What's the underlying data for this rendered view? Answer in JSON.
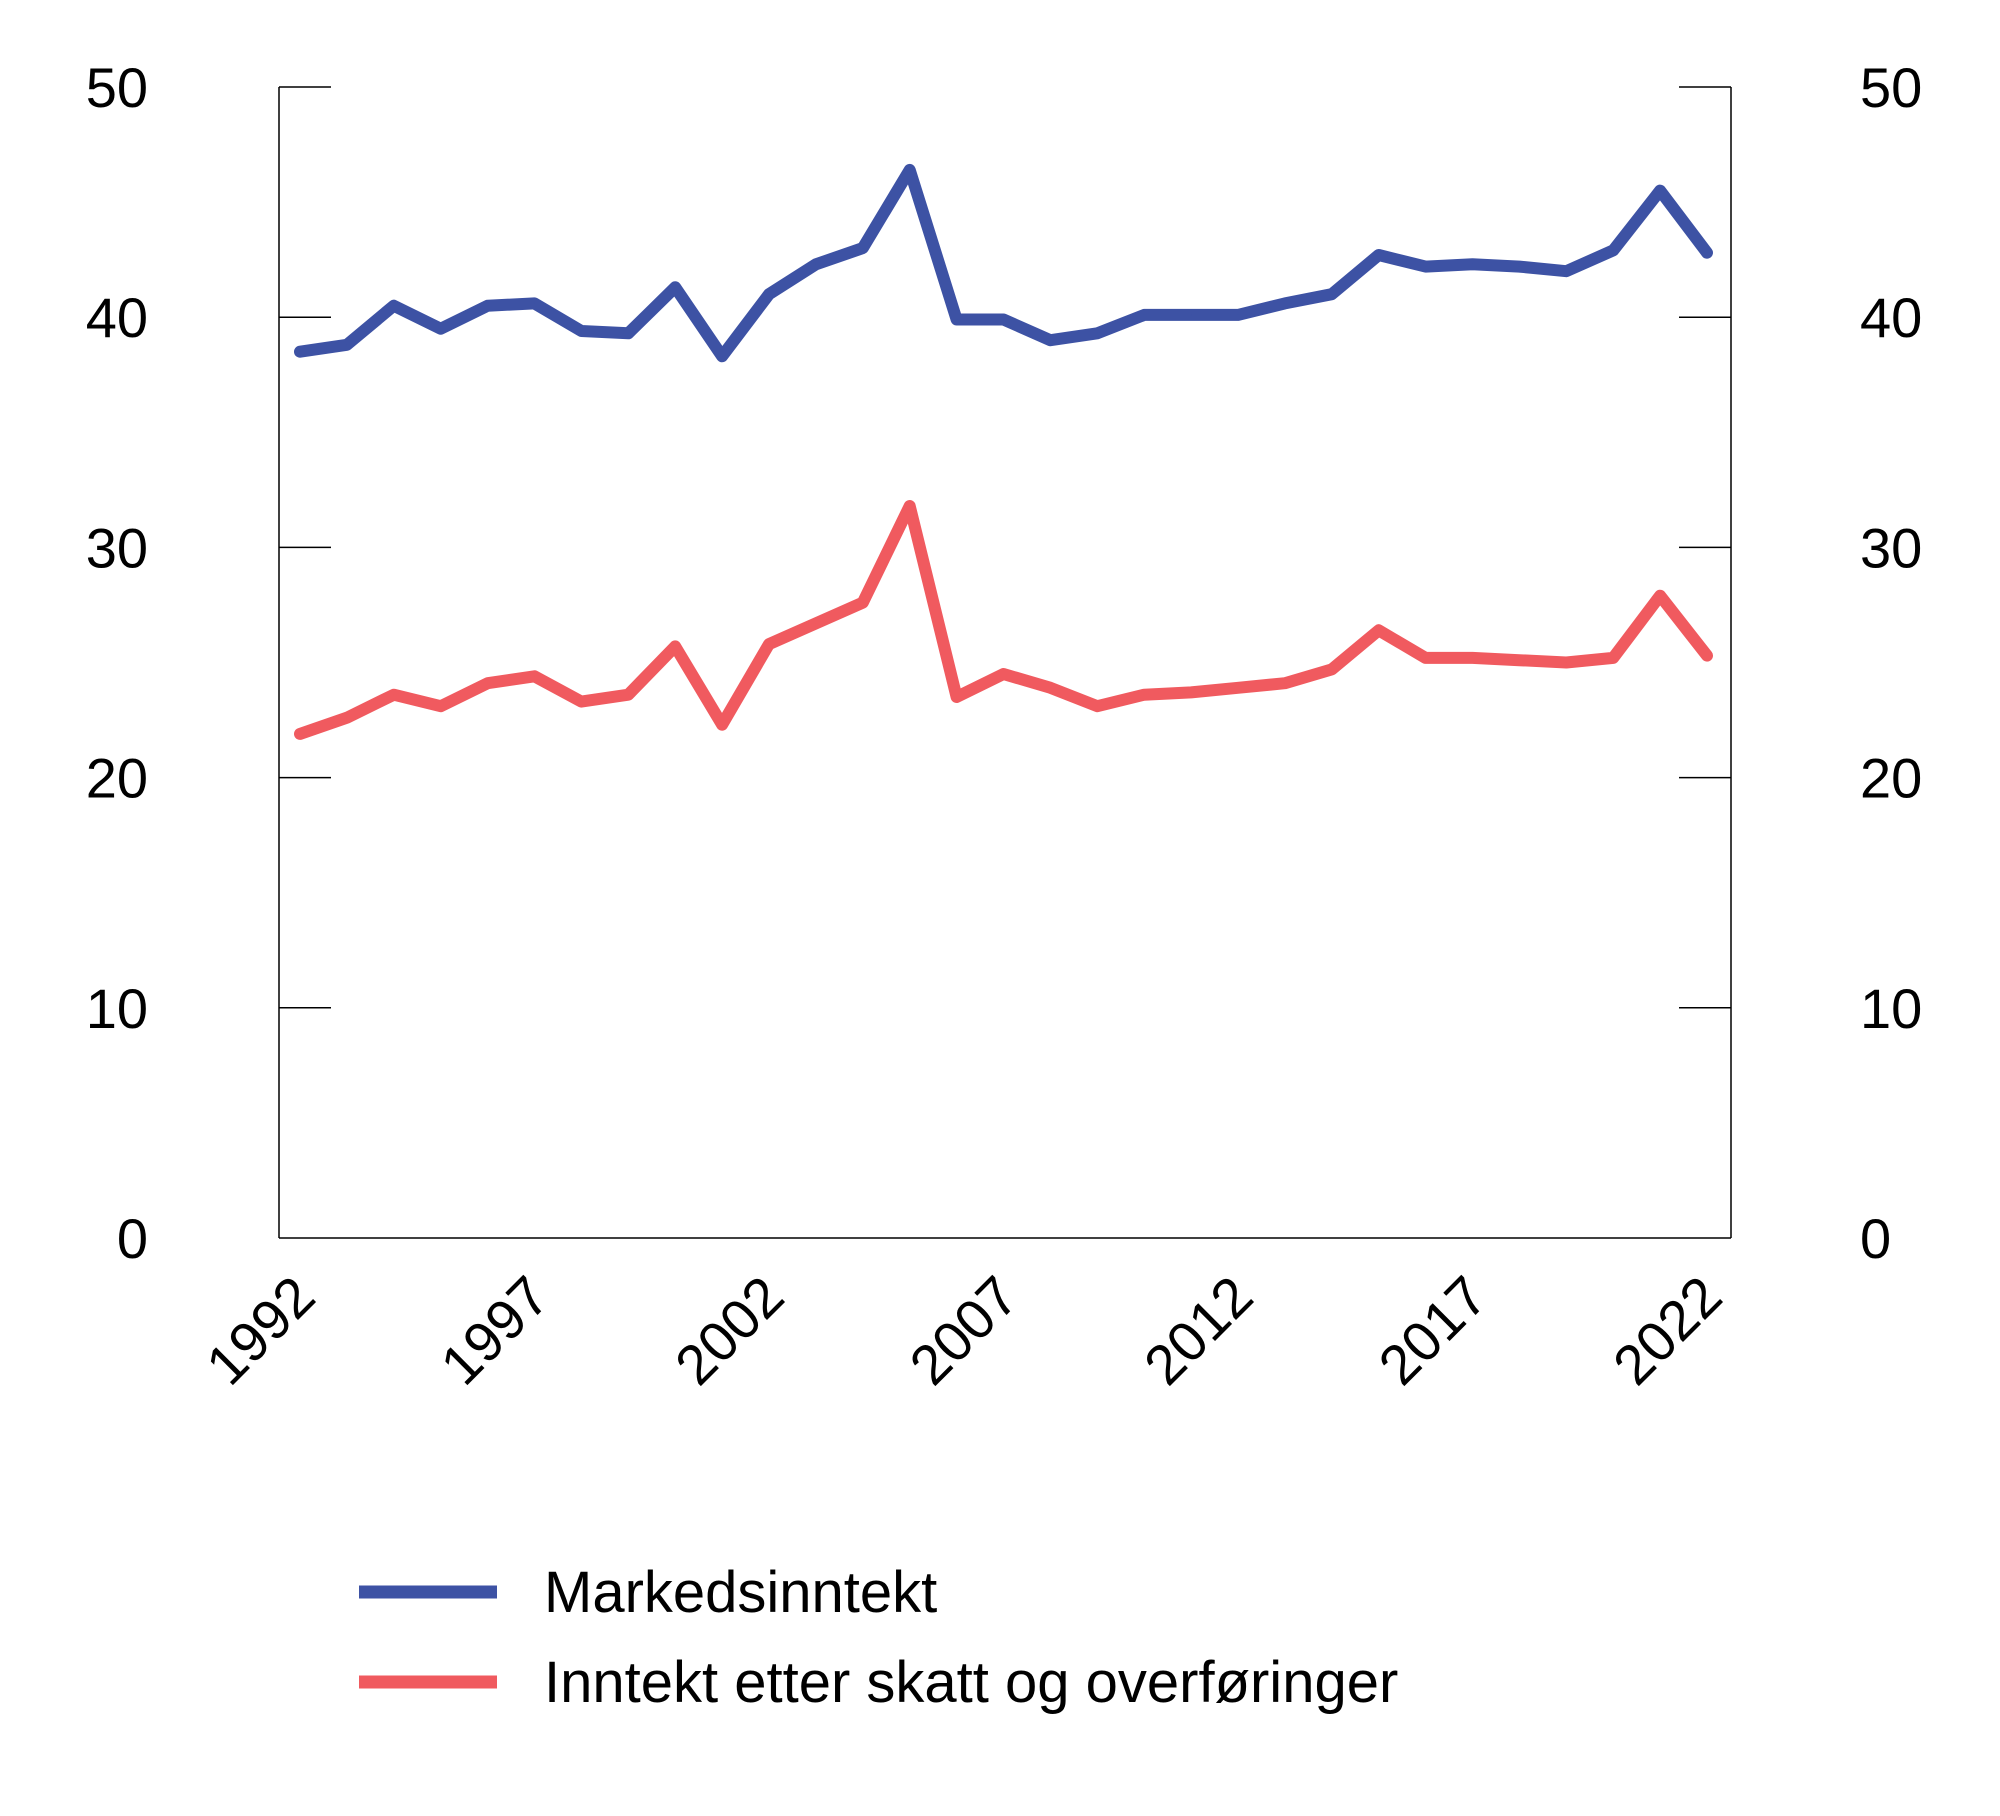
{
  "chart_data": {
    "type": "line",
    "title": "",
    "xlabel": "",
    "ylabel": "",
    "ylim": [
      0,
      50
    ],
    "y_ticks": [
      0,
      10,
      20,
      30,
      40,
      50
    ],
    "y_tick_labels": [
      "0",
      "10",
      "20",
      "30",
      "40",
      "50"
    ],
    "secondary_y_axis": true,
    "xlim": [
      1992,
      2022
    ],
    "x_tick_labels": [
      "1992",
      "1997",
      "2002",
      "2007",
      "2012",
      "2017",
      "2022"
    ],
    "x_ticks": [
      1992,
      1997,
      2002,
      2007,
      2012,
      2017,
      2022
    ],
    "grid": false,
    "legend_position": "bottom",
    "x": [
      1992,
      1993,
      1994,
      1995,
      1996,
      1997,
      1998,
      1999,
      2000,
      2001,
      2002,
      2003,
      2004,
      2005,
      2006,
      2007,
      2008,
      2009,
      2010,
      2011,
      2012,
      2013,
      2014,
      2015,
      2016,
      2017,
      2018,
      2019,
      2020,
      2021,
      2022
    ],
    "series": [
      {
        "name": "Markedsinntekt",
        "color": "#3d52a4",
        "values": [
          38.5,
          38.8,
          40.5,
          39.5,
          40.5,
          40.6,
          39.4,
          39.3,
          41.3,
          38.3,
          41.0,
          42.3,
          43.0,
          46.4,
          39.9,
          39.9,
          39.0,
          39.3,
          40.1,
          40.1,
          40.1,
          40.6,
          41.0,
          42.7,
          42.2,
          42.3,
          42.2,
          42.0,
          42.9,
          45.5,
          42.8
        ]
      },
      {
        "name": "Inntekt etter skatt og overføringer",
        "color": "#f05a5f",
        "values": [
          21.9,
          22.6,
          23.6,
          23.1,
          24.1,
          24.4,
          23.3,
          23.6,
          25.7,
          22.3,
          25.8,
          26.7,
          27.6,
          31.8,
          23.5,
          24.5,
          23.9,
          23.1,
          23.6,
          23.7,
          23.9,
          24.1,
          24.7,
          26.4,
          25.2,
          25.2,
          25.1,
          25.0,
          25.2,
          27.9,
          25.3
        ]
      }
    ]
  }
}
